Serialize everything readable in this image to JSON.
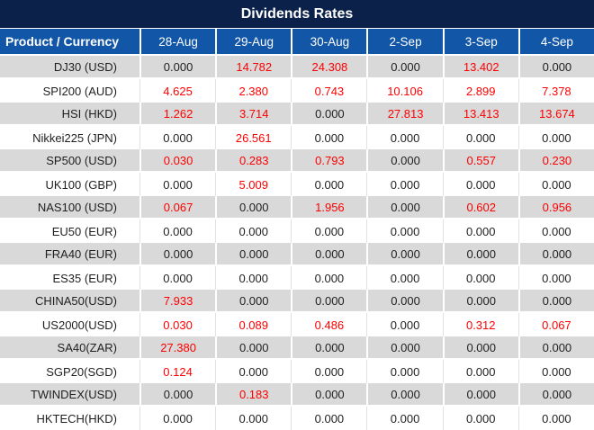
{
  "title": "Dividends Rates",
  "header": {
    "product_label": "Product / Currency",
    "dates": [
      "28-Aug",
      "29-Aug",
      "30-Aug",
      "2-Sep",
      "3-Sep",
      "4-Sep"
    ]
  },
  "rows": [
    {
      "product": "DJ30 (USD)",
      "values": [
        "0.000",
        "14.782",
        "24.308",
        "0.000",
        "13.402",
        "0.000"
      ],
      "red": [
        false,
        true,
        true,
        false,
        true,
        false
      ]
    },
    {
      "product": "SPI200 (AUD)",
      "values": [
        "4.625",
        "2.380",
        "0.743",
        "10.106",
        "2.899",
        "7.378"
      ],
      "red": [
        true,
        true,
        true,
        true,
        true,
        true
      ]
    },
    {
      "product": "HSI (HKD)",
      "values": [
        "1.262",
        "3.714",
        "0.000",
        "27.813",
        "13.413",
        "13.674"
      ],
      "red": [
        true,
        true,
        false,
        true,
        true,
        true
      ]
    },
    {
      "product": "Nikkei225 (JPN)",
      "values": [
        "0.000",
        "26.561",
        "0.000",
        "0.000",
        "0.000",
        "0.000"
      ],
      "red": [
        false,
        true,
        false,
        false,
        false,
        false
      ]
    },
    {
      "product": "SP500 (USD)",
      "values": [
        "0.030",
        "0.283",
        "0.793",
        "0.000",
        "0.557",
        "0.230"
      ],
      "red": [
        true,
        true,
        true,
        false,
        true,
        true
      ]
    },
    {
      "product": "UK100 (GBP)",
      "values": [
        "0.000",
        "5.009",
        "0.000",
        "0.000",
        "0.000",
        "0.000"
      ],
      "red": [
        false,
        true,
        false,
        false,
        false,
        false
      ]
    },
    {
      "product": "NAS100 (USD)",
      "values": [
        "0.067",
        "0.000",
        "1.956",
        "0.000",
        "0.602",
        "0.956"
      ],
      "red": [
        true,
        false,
        true,
        false,
        true,
        true
      ]
    },
    {
      "product": "EU50 (EUR)",
      "values": [
        "0.000",
        "0.000",
        "0.000",
        "0.000",
        "0.000",
        "0.000"
      ],
      "red": [
        false,
        false,
        false,
        false,
        false,
        false
      ]
    },
    {
      "product": "FRA40 (EUR)",
      "values": [
        "0.000",
        "0.000",
        "0.000",
        "0.000",
        "0.000",
        "0.000"
      ],
      "red": [
        false,
        false,
        false,
        false,
        false,
        false
      ]
    },
    {
      "product": "ES35 (EUR)",
      "values": [
        "0.000",
        "0.000",
        "0.000",
        "0.000",
        "0.000",
        "0.000"
      ],
      "red": [
        false,
        false,
        false,
        false,
        false,
        false
      ]
    },
    {
      "product": "CHINA50(USD)",
      "values": [
        "7.933",
        "0.000",
        "0.000",
        "0.000",
        "0.000",
        "0.000"
      ],
      "red": [
        true,
        false,
        false,
        false,
        false,
        false
      ]
    },
    {
      "product": "US2000(USD)",
      "values": [
        "0.030",
        "0.089",
        "0.486",
        "0.000",
        "0.312",
        "0.067"
      ],
      "red": [
        true,
        true,
        true,
        false,
        true,
        true
      ]
    },
    {
      "product": "SA40(ZAR)",
      "values": [
        "27.380",
        "0.000",
        "0.000",
        "0.000",
        "0.000",
        "0.000"
      ],
      "red": [
        true,
        false,
        false,
        false,
        false,
        false
      ]
    },
    {
      "product": "SGP20(SGD)",
      "values": [
        "0.124",
        "0.000",
        "0.000",
        "0.000",
        "0.000",
        "0.000"
      ],
      "red": [
        true,
        false,
        false,
        false,
        false,
        false
      ]
    },
    {
      "product": "TWINDEX(USD)",
      "values": [
        "0.000",
        "0.183",
        "0.000",
        "0.000",
        "0.000",
        "0.000"
      ],
      "red": [
        false,
        true,
        false,
        false,
        false,
        false
      ]
    },
    {
      "product": "HKTECH(HKD)",
      "values": [
        "0.000",
        "0.000",
        "0.000",
        "0.000",
        "0.000",
        "0.000"
      ],
      "red": [
        false,
        false,
        false,
        false,
        false,
        false
      ]
    }
  ],
  "colors": {
    "title_bg": "#0b2149",
    "header_bg": "#1256a7",
    "alt_row_bg": "#d9d9d9",
    "highlight_red": "#fe0000",
    "text_color": "#1f1f1f"
  }
}
